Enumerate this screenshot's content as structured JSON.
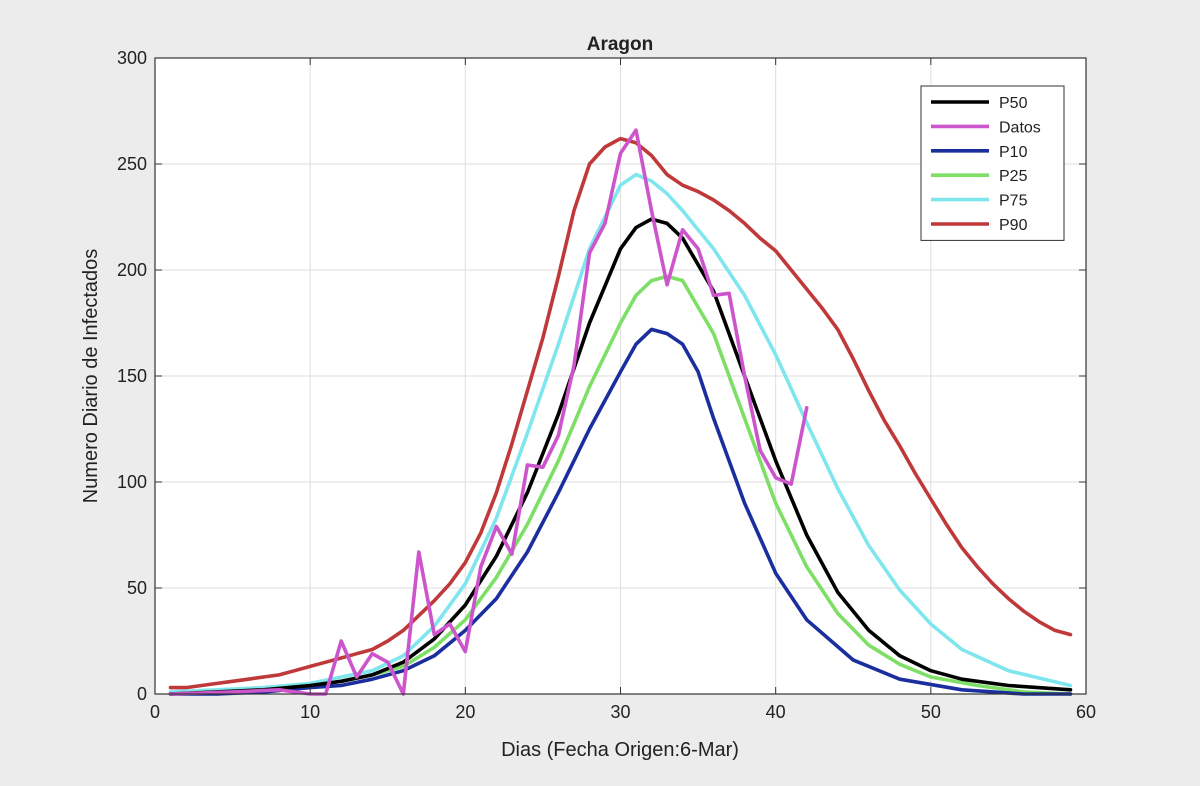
{
  "chart_data": {
    "type": "line",
    "title": "Aragon",
    "xlabel": "Dias (Fecha Origen:6-Mar)",
    "ylabel": "Numero Diario de Infectados",
    "xlim": [
      0,
      60
    ],
    "ylim": [
      0,
      300
    ],
    "xticks": [
      "0",
      "10",
      "20",
      "30",
      "40",
      "50",
      "60"
    ],
    "yticks": [
      "0",
      "50",
      "100",
      "150",
      "200",
      "250",
      "300"
    ],
    "grid": true,
    "legend_position": "top-right",
    "series": [
      {
        "name": "P50",
        "color": "#000000",
        "x": [
          1,
          4,
          7,
          10,
          12,
          14,
          16,
          18,
          20,
          22,
          24,
          26,
          28,
          30,
          31,
          32,
          33,
          34,
          36,
          38,
          40,
          42,
          44,
          46,
          48,
          50,
          52,
          55,
          59
        ],
        "values": [
          0,
          1,
          2,
          4,
          6,
          9,
          15,
          26,
          42,
          65,
          95,
          132,
          175,
          210,
          220,
          224,
          222,
          215,
          190,
          150,
          110,
          75,
          48,
          30,
          18,
          11,
          7,
          4,
          2
        ]
      },
      {
        "name": "Datos",
        "color": "#cc55cc",
        "x": [
          1,
          5,
          8,
          10,
          11,
          12,
          13,
          14,
          15,
          16,
          17,
          18,
          19,
          20,
          21,
          22,
          23,
          24,
          25,
          26,
          27,
          28,
          29,
          30,
          31,
          32,
          33,
          34,
          35,
          36,
          37,
          38,
          39,
          40,
          41,
          42
        ],
        "values": [
          0,
          1,
          2,
          0,
          0,
          25,
          8,
          19,
          15,
          0,
          67,
          28,
          33,
          20,
          60,
          79,
          66,
          108,
          107,
          122,
          155,
          208,
          222,
          255,
          266,
          228,
          193,
          219,
          210,
          188,
          189,
          150,
          115,
          102,
          99,
          135
        ]
      },
      {
        "name": "P10",
        "color": "#1a2e9e",
        "x": [
          1,
          4,
          7,
          10,
          12,
          14,
          16,
          18,
          20,
          22,
          24,
          26,
          28,
          30,
          31,
          32,
          33,
          34,
          35,
          36,
          38,
          40,
          42,
          45,
          48,
          52,
          56,
          59
        ],
        "values": [
          0,
          0,
          1,
          3,
          4,
          7,
          11,
          18,
          30,
          45,
          67,
          95,
          125,
          152,
          165,
          172,
          170,
          165,
          152,
          130,
          90,
          57,
          35,
          16,
          7,
          2,
          0,
          0
        ]
      },
      {
        "name": "P25",
        "color": "#7ddf66",
        "x": [
          1,
          4,
          7,
          10,
          12,
          14,
          16,
          18,
          20,
          22,
          24,
          26,
          28,
          30,
          31,
          32,
          33,
          34,
          36,
          38,
          40,
          42,
          44,
          46,
          48,
          50,
          53,
          56,
          59
        ],
        "values": [
          0,
          1,
          2,
          4,
          6,
          9,
          13,
          22,
          35,
          55,
          80,
          110,
          145,
          175,
          188,
          195,
          197,
          195,
          170,
          130,
          90,
          60,
          38,
          23,
          14,
          8,
          4,
          1,
          0
        ]
      },
      {
        "name": "P75",
        "color": "#7fe6ee",
        "x": [
          1,
          4,
          7,
          10,
          12,
          14,
          16,
          18,
          20,
          22,
          24,
          26,
          28,
          30,
          31,
          32,
          33,
          34,
          36,
          38,
          40,
          42,
          44,
          46,
          48,
          50,
          52,
          55,
          59
        ],
        "values": [
          1,
          2,
          3,
          5,
          8,
          11,
          18,
          32,
          52,
          83,
          123,
          165,
          210,
          240,
          245,
          242,
          236,
          228,
          210,
          188,
          160,
          128,
          97,
          70,
          49,
          33,
          21,
          11,
          4
        ]
      },
      {
        "name": "P90",
        "color": "#c0393a",
        "x": [
          1,
          2,
          3,
          4,
          5,
          6,
          7,
          8,
          9,
          10,
          11,
          12,
          13,
          14,
          15,
          16,
          17,
          18,
          19,
          20,
          21,
          22,
          23,
          24,
          25,
          26,
          27,
          28,
          29,
          30,
          31,
          32,
          33,
          34,
          35,
          36,
          37,
          38,
          39,
          40,
          41,
          42,
          43,
          44,
          45,
          46,
          47,
          48,
          49,
          50,
          51,
          52,
          53,
          54,
          55,
          56,
          57,
          58,
          59
        ],
        "values": [
          3,
          3,
          4,
          5,
          6,
          7,
          8,
          9,
          11,
          13,
          15,
          17,
          19,
          21,
          25,
          30,
          37,
          44,
          52,
          62,
          76,
          95,
          118,
          143,
          168,
          197,
          228,
          250,
          258,
          262,
          260,
          254,
          245,
          240,
          237,
          233,
          228,
          222,
          215,
          209,
          200,
          191,
          182,
          172,
          158,
          143,
          129,
          117,
          104,
          92,
          80,
          69,
          60,
          52,
          45,
          39,
          34,
          30,
          28
        ]
      }
    ]
  }
}
